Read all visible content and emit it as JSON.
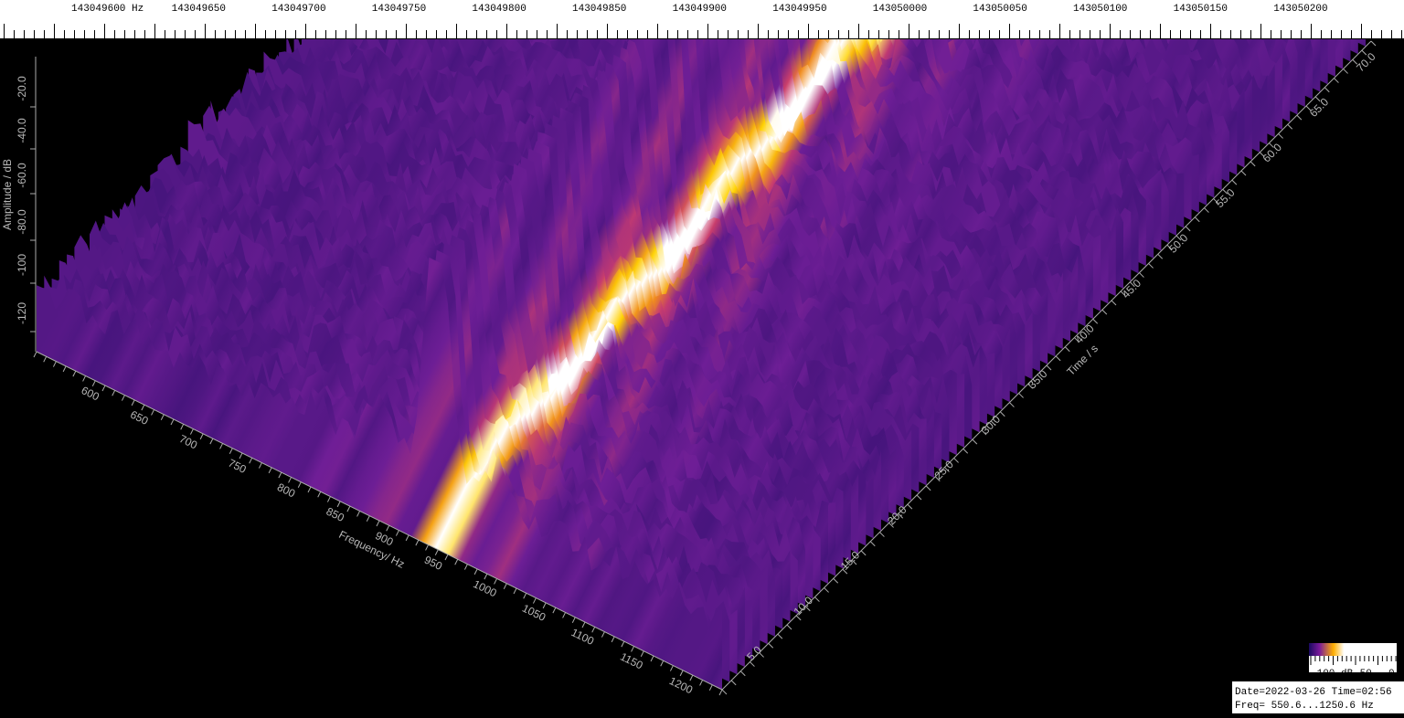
{
  "top_ruler": {
    "labels": [
      "143049600 Hz",
      "143049650",
      "143049700",
      "143049750",
      "143049800",
      "143049850",
      "143049900",
      "143049950",
      "143050000",
      "143050050",
      "143050100",
      "143050150",
      "143050200"
    ]
  },
  "amplitude_axis": {
    "title": "Amplitude / dB",
    "ticks": [
      "-20.0",
      "-40.0",
      "-60.0",
      "-80.0",
      "-100",
      "-120"
    ]
  },
  "frequency_axis": {
    "title": "Frequency/ Hz",
    "ticks": [
      "600",
      "650",
      "700",
      "750",
      "800",
      "850",
      "900",
      "950",
      "1000",
      "1050",
      "1100",
      "1150",
      "1200"
    ]
  },
  "time_axis": {
    "title": "Time / s",
    "ticks": [
      "5.0",
      "10.0",
      "15.0",
      "20.0",
      "25.0",
      "30.0",
      "35.0",
      "40.0",
      "45.0",
      "50.0",
      "55.0",
      "60.0",
      "65.0",
      "70.0"
    ]
  },
  "color_bar": {
    "labels": [
      "-100 dB",
      "-50",
      "0"
    ]
  },
  "status": {
    "line1": "Date=2022-03-26 Time=02:56",
    "line2": "Freq= 550.6...1250.6 Hz"
  }
}
